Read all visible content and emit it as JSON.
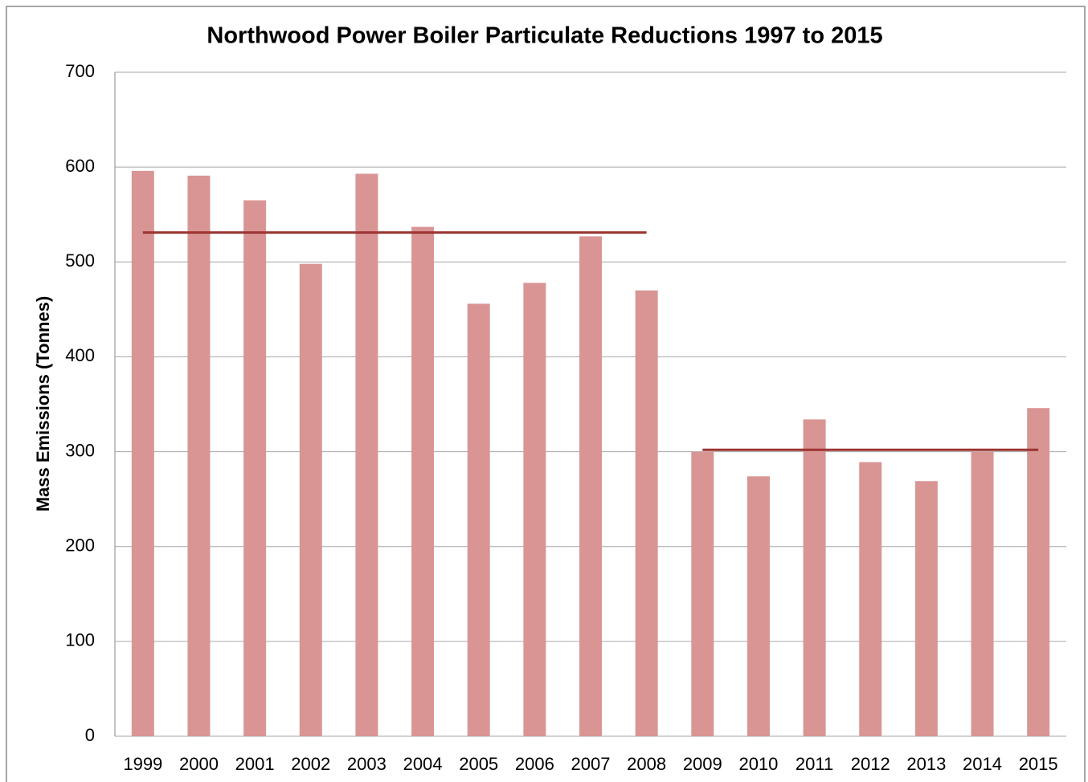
{
  "chart_data": {
    "type": "bar",
    "title": "Northwood Power Boiler Particulate Reductions 1997 to 2015",
    "ylabel": "Mass Emissions (Tonnes)",
    "categories": [
      "1999",
      "2000",
      "2001",
      "2002",
      "2003",
      "2004",
      "2005",
      "2006",
      "2007",
      "2008",
      "2009",
      "2010",
      "2011",
      "2012",
      "2013",
      "2014",
      "2015"
    ],
    "values": [
      596,
      591,
      565,
      498,
      593,
      537,
      456,
      478,
      527,
      470,
      300,
      274,
      334,
      289,
      269,
      300,
      346
    ],
    "color": "#d99594",
    "averages": [
      {
        "color": "#9b3431",
        "values": [
          531,
          531,
          531,
          531,
          531,
          531,
          531,
          531,
          531,
          531,
          null,
          null,
          null,
          null,
          null,
          null,
          null
        ]
      },
      {
        "color": "#9b3431",
        "values": [
          null,
          null,
          null,
          null,
          null,
          null,
          null,
          null,
          null,
          null,
          302,
          302,
          302,
          302,
          302,
          302,
          302
        ]
      }
    ],
    "ylim": [
      0,
      700
    ],
    "yticks": [
      0,
      100,
      200,
      300,
      400,
      500,
      600,
      700
    ],
    "grid": true
  }
}
